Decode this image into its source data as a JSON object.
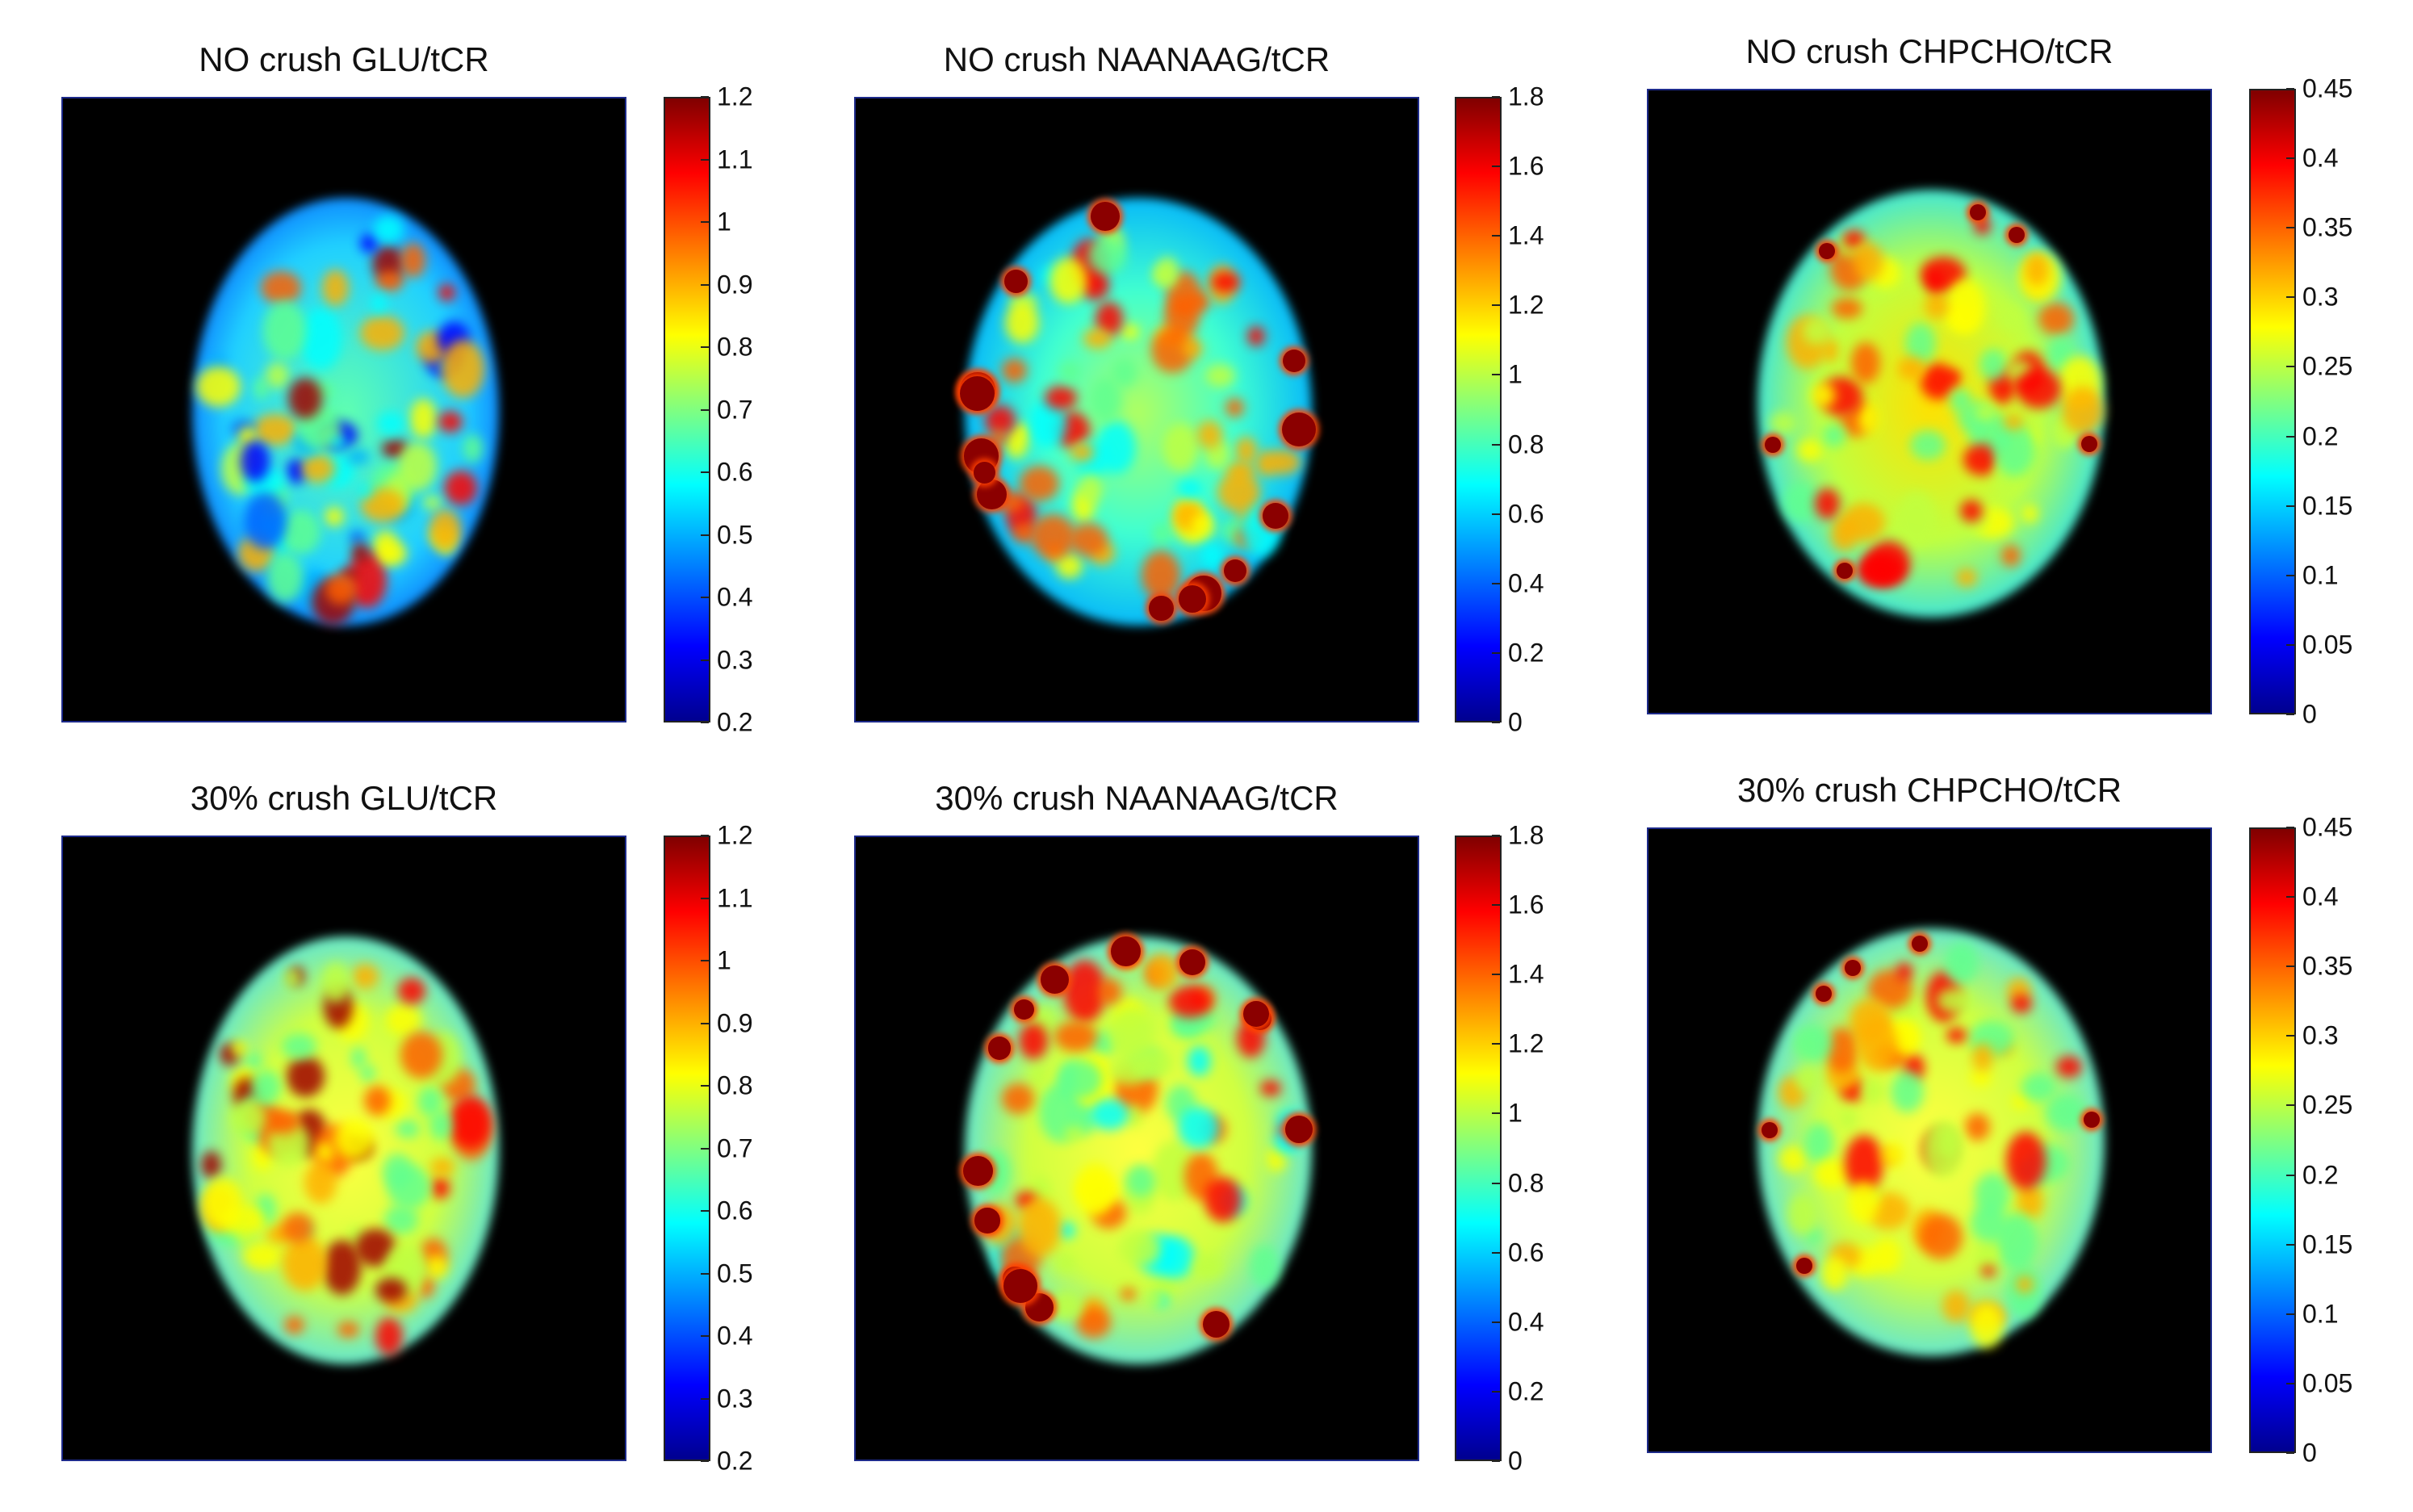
{
  "panels": [
    {
      "title": "NO crush GLU/tCR",
      "colorbar": {
        "min": 0.2,
        "max": 1.2,
        "ticks": [
          "1.2",
          "1.1",
          "1",
          "0.9",
          "0.8",
          "0.7",
          "0.6",
          "0.5",
          "0.4",
          "0.3",
          "0.2"
        ]
      },
      "palette": "jet"
    },
    {
      "title": "NO crush NAANAAG/tCR",
      "colorbar": {
        "min": 0,
        "max": 1.8,
        "ticks": [
          "1.8",
          "1.6",
          "1.4",
          "1.2",
          "1",
          "0.8",
          "0.6",
          "0.4",
          "0.2",
          "0"
        ]
      },
      "palette": "jet"
    },
    {
      "title": "NO crush CHPCHO/tCR",
      "colorbar": {
        "min": 0,
        "max": 0.45,
        "ticks": [
          "0.45",
          "0.4",
          "0.35",
          "0.3",
          "0.25",
          "0.2",
          "0.15",
          "0.1",
          "0.05",
          "0"
        ]
      },
      "palette": "jet"
    },
    {
      "title": "30% crush GLU/tCR",
      "colorbar": {
        "min": 0.2,
        "max": 1.2,
        "ticks": [
          "1.2",
          "1.1",
          "1",
          "0.9",
          "0.8",
          "0.7",
          "0.6",
          "0.5",
          "0.4",
          "0.3",
          "0.2"
        ]
      },
      "palette": "jet"
    },
    {
      "title": "30% crush NAANAAG/tCR",
      "colorbar": {
        "min": 0,
        "max": 1.8,
        "ticks": [
          "1.8",
          "1.6",
          "1.4",
          "1.2",
          "1",
          "0.8",
          "0.6",
          "0.4",
          "0.2",
          "0"
        ]
      },
      "palette": "jet"
    },
    {
      "title": "30% crush CHPCHO/tCR",
      "colorbar": {
        "min": 0,
        "max": 0.45,
        "ticks": [
          "0.45",
          "0.4",
          "0.35",
          "0.3",
          "0.25",
          "0.2",
          "0.15",
          "0.1",
          "0.05",
          "0"
        ]
      },
      "palette": "jet"
    }
  ]
}
